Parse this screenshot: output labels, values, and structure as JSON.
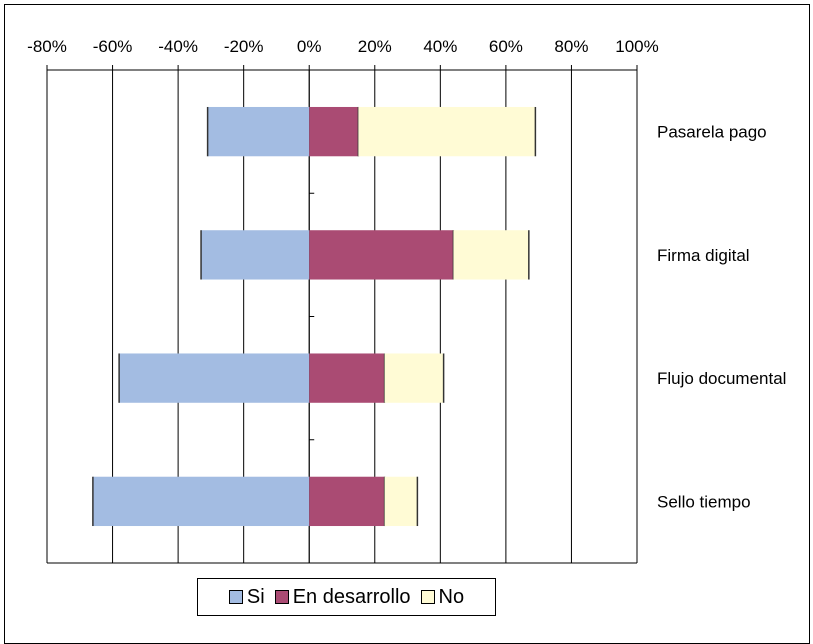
{
  "chart_data": {
    "type": "bar",
    "orientation": "horizontal",
    "stacked": true,
    "categories": [
      "Pasarela pago",
      "Firma digital",
      "Flujo documental",
      "Sello tiempo"
    ],
    "series": [
      {
        "name": "Si",
        "color": "#A3BCE2",
        "values": [
          -31,
          -33,
          -58,
          -66
        ]
      },
      {
        "name": "En desarrollo",
        "color": "#AA4B73",
        "values": [
          15,
          44,
          23,
          23
        ]
      },
      {
        "name": "No",
        "color": "#FFFBD5",
        "values": [
          54,
          23,
          18,
          10
        ]
      }
    ],
    "x_ticks": [
      "-80%",
      "-60%",
      "-40%",
      "-20%",
      "0%",
      "20%",
      "40%",
      "60%",
      "80%",
      "100%"
    ],
    "xlim": [
      -80,
      100
    ],
    "grid": true,
    "legend_position": "bottom",
    "title": "",
    "xlabel": "",
    "ylabel": ""
  }
}
